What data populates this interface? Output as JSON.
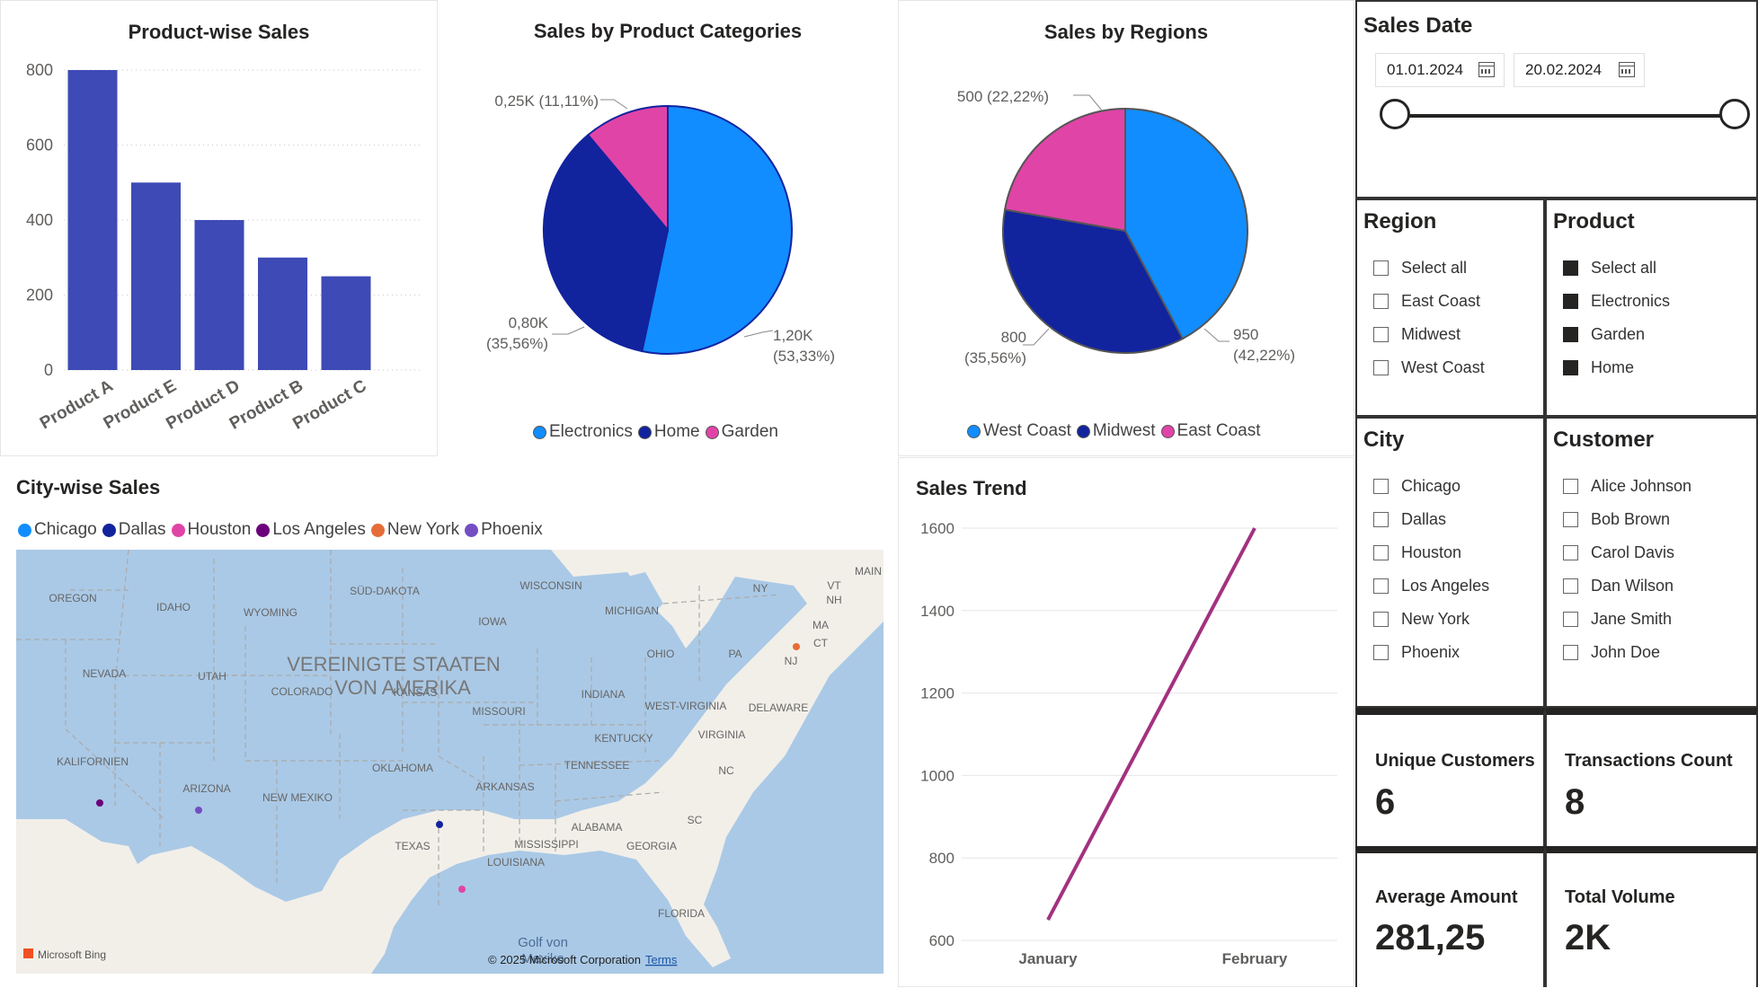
{
  "product_sales": {
    "title": "Product-wise Sales",
    "chart_data": {
      "type": "bar",
      "categories": [
        "Product A",
        "Product E",
        "Product D",
        "Product B",
        "Product C"
      ],
      "values": [
        800,
        500,
        400,
        300,
        250
      ],
      "ylim": [
        0,
        800
      ],
      "yticks": [
        "0",
        "200",
        "400",
        "600",
        "800"
      ],
      "color": "#3e4ab5",
      "grid": true
    }
  },
  "category_sales": {
    "title": "Sales by Product Categories",
    "chart_data": {
      "type": "pie",
      "slices": [
        {
          "name": "Electronics",
          "value": 1200,
          "label_value": "1,20K",
          "label_pct": "(53,33%)",
          "color": "#118dff"
        },
        {
          "name": "Home",
          "value": 800,
          "label_value": "0,80K",
          "label_pct": "(35,56%)",
          "color": "#12239e"
        },
        {
          "name": "Garden",
          "value": 250,
          "label_value": "0,25K",
          "label_pct": "(11,11%)",
          "color": "#e044a7"
        }
      ]
    }
  },
  "region_sales": {
    "title": "Sales by Regions",
    "chart_data": {
      "type": "pie",
      "slices": [
        {
          "name": "West Coast",
          "value": 950,
          "label_value": "950",
          "label_pct": "(42,22%)",
          "color": "#118dff"
        },
        {
          "name": "Midwest",
          "value": 800,
          "label_value": "800",
          "label_pct": "(35,56%)",
          "color": "#12239e"
        },
        {
          "name": "East Coast",
          "value": 500,
          "label_value": "500",
          "label_pct": "(22,22%)",
          "color": "#e044a7"
        }
      ]
    }
  },
  "city_sales": {
    "title": "City-wise Sales",
    "legend": [
      {
        "name": "Chicago",
        "color": "#118dff"
      },
      {
        "name": "Dallas",
        "color": "#12239e"
      },
      {
        "name": "Houston",
        "color": "#e044a7"
      },
      {
        "name": "Los Angeles",
        "color": "#6b007b"
      },
      {
        "name": "New York",
        "color": "#e66c37"
      },
      {
        "name": "Phoenix",
        "color": "#744ec2"
      }
    ],
    "map": {
      "country_label_1": "VEREINIGTE STAATEN",
      "country_label_2": "VON AMERIKA",
      "gulf_1": "Golf von",
      "gulf_2": "Mexiko",
      "states": [
        "OREGON",
        "IDAHO",
        "WYOMING",
        "SÜD-DAKOTA",
        "WISCONSIN",
        "MICHIGAN",
        "NEVADA",
        "UTAH",
        "COLORADO",
        "KANSAS",
        "IOWA",
        "MISSOURI",
        "INDIANA",
        "OHIO",
        "PA",
        "NY",
        "VT",
        "NH",
        "MA",
        "CT",
        "NJ",
        "MAIN",
        "WEST-VIRGINIA",
        "DELAWARE",
        "VIRGINIA",
        "KENTUCKY",
        "TENNESSEE",
        "NC",
        "SC",
        "KALIFORNIEN",
        "ARIZONA",
        "NEW MEXIKO",
        "OKLAHOMA",
        "ARKANSAS",
        "TEXAS",
        "MISSISSIPPI",
        "ALABAMA",
        "GEORGIA",
        "LOUISIANA",
        "FLORIDA"
      ],
      "brand": "Microsoft Bing",
      "copyright": "© 2025 Microsoft Corporation",
      "terms": "Terms"
    }
  },
  "sales_trend": {
    "title": "Sales Trend",
    "chart_data": {
      "type": "line",
      "categories": [
        "January",
        "February"
      ],
      "series": [
        {
          "values": [
            650,
            1600
          ],
          "color": "#a3317f"
        }
      ],
      "ylim": [
        600,
        1600
      ],
      "yticks": [
        "600",
        "800",
        "1000",
        "1200",
        "1400",
        "1600"
      ],
      "grid": true
    }
  },
  "sales_date": {
    "title": "Sales Date",
    "start": "01.01.2024",
    "end": "20.02.2024",
    "slider_start": 0,
    "slider_end": 1
  },
  "region_slicer": {
    "title": "Region",
    "items": [
      {
        "label": "Select all",
        "checked": false
      },
      {
        "label": "East Coast",
        "checked": false
      },
      {
        "label": "Midwest",
        "checked": false
      },
      {
        "label": "West Coast",
        "checked": false
      }
    ]
  },
  "product_slicer": {
    "title": "Product",
    "items": [
      {
        "label": "Select all",
        "checked": true
      },
      {
        "label": "Electronics",
        "checked": true
      },
      {
        "label": "Garden",
        "checked": true
      },
      {
        "label": "Home",
        "checked": true
      }
    ]
  },
  "city_slicer": {
    "title": "City",
    "items": [
      {
        "label": "Chicago",
        "checked": false
      },
      {
        "label": "Dallas",
        "checked": false
      },
      {
        "label": "Houston",
        "checked": false
      },
      {
        "label": "Los Angeles",
        "checked": false
      },
      {
        "label": "New York",
        "checked": false
      },
      {
        "label": "Phoenix",
        "checked": false
      }
    ]
  },
  "customer_slicer": {
    "title": "Customer",
    "items": [
      {
        "label": "Alice Johnson",
        "checked": false
      },
      {
        "label": "Bob Brown",
        "checked": false
      },
      {
        "label": "Carol Davis",
        "checked": false
      },
      {
        "label": "Dan Wilson",
        "checked": false
      },
      {
        "label": "Jane Smith",
        "checked": false
      },
      {
        "label": "John Doe",
        "checked": false
      }
    ]
  },
  "kpis": {
    "unique_customers": {
      "label": "Unique Customers",
      "value": "6"
    },
    "transactions": {
      "label": "Transactions Count",
      "value": "8"
    },
    "average_amount": {
      "label": "Average Amount",
      "value": "281,25"
    },
    "total_volume": {
      "label": "Total Volume",
      "value": "2K"
    }
  }
}
